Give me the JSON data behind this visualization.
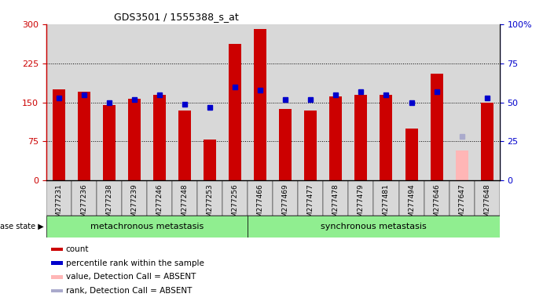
{
  "title": "GDS3501 / 1555388_s_at",
  "samples": [
    "GSM277231",
    "GSM277236",
    "GSM277238",
    "GSM277239",
    "GSM277246",
    "GSM277248",
    "GSM277253",
    "GSM277256",
    "GSM277466",
    "GSM277469",
    "GSM277477",
    "GSM277478",
    "GSM277479",
    "GSM277481",
    "GSM277494",
    "GSM277646",
    "GSM277647",
    "GSM277648"
  ],
  "count_values": [
    175,
    170,
    145,
    157,
    165,
    135,
    78,
    262,
    290,
    138,
    135,
    162,
    165,
    165,
    100,
    205,
    null,
    150
  ],
  "percentile_values": [
    53,
    55,
    50,
    52,
    55,
    49,
    47,
    60,
    58,
    52,
    52,
    55,
    57,
    55,
    50,
    57,
    null,
    53
  ],
  "absent_count": [
    null,
    null,
    null,
    null,
    null,
    null,
    null,
    null,
    null,
    null,
    null,
    null,
    null,
    null,
    null,
    null,
    58,
    null
  ],
  "absent_rank": [
    null,
    null,
    null,
    null,
    null,
    null,
    null,
    null,
    null,
    null,
    null,
    null,
    null,
    null,
    null,
    null,
    28,
    null
  ],
  "metachronous_count": 8,
  "synchronous_count": 10,
  "ylim_left": [
    0,
    300
  ],
  "ylim_right": [
    0,
    100
  ],
  "yticks_left": [
    0,
    75,
    150,
    225,
    300
  ],
  "yticks_right": [
    0,
    25,
    50,
    75,
    100
  ],
  "bar_color": "#cc0000",
  "absent_bar_color": "#ffb6b6",
  "dot_color": "#0000cc",
  "absent_dot_color": "#aaaacc",
  "bg_color": "#d8d8d8",
  "meta_bg": "#90ee90",
  "sync_bg": "#90ee90",
  "bar_width": 0.5,
  "legend_items": [
    {
      "label": "count",
      "color": "#cc0000"
    },
    {
      "label": "percentile rank within the sample",
      "color": "#0000cc"
    },
    {
      "label": "value, Detection Call = ABSENT",
      "color": "#ffb6b6"
    },
    {
      "label": "rank, Detection Call = ABSENT",
      "color": "#aaaacc"
    }
  ]
}
